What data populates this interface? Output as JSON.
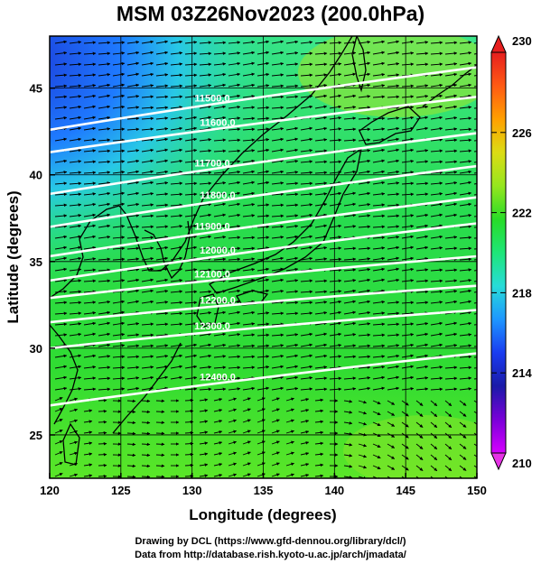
{
  "title": "MSM 03Z26Nov2023 (200.0hPa)",
  "x_axis": {
    "label": "Longitude (degrees)",
    "min": 120,
    "max": 150,
    "ticks": [
      120,
      125,
      130,
      135,
      140,
      145,
      150
    ]
  },
  "y_axis": {
    "label": "Latitude  (degrees)",
    "min": 22.5,
    "max": 48,
    "ticks": [
      25,
      30,
      35,
      40,
      45
    ]
  },
  "colorbar": {
    "min": 210,
    "max": 230,
    "labels": [
      210,
      214,
      218,
      222,
      226,
      230
    ],
    "colors": [
      "#d600ff",
      "#7a00d8",
      "#1a1aa8",
      "#1a3cf0",
      "#1e96ff",
      "#28dcd8",
      "#1ee678",
      "#28dc28",
      "#96e61e",
      "#dcdc14",
      "#ffa000",
      "#ff5a14",
      "#e61e1e"
    ]
  },
  "contours": [
    {
      "label": "11500.0",
      "lat120": 42.6,
      "lat150": 46.2
    },
    {
      "label": "11600.0",
      "lat120": 41.3,
      "lat150": 44.5
    },
    {
      "label": "11700.0",
      "lat120": 38.9,
      "lat150": 42.4
    },
    {
      "label": "11800.0",
      "lat120": 37.0,
      "lat150": 40.5
    },
    {
      "label": "11900.0",
      "lat120": 35.3,
      "lat150": 38.7
    },
    {
      "label": "12000.0",
      "lat120": 33.9,
      "lat150": 37.2
    },
    {
      "label": "12100.0",
      "lat120": 32.9,
      "lat150": 35.3
    },
    {
      "label": "12200.0",
      "lat120": 31.5,
      "lat150": 33.6
    },
    {
      "label": "12300.0",
      "lat120": 30.0,
      "lat150": 32.2
    },
    {
      "label": "12400.0",
      "lat120": 26.7,
      "lat150": 29.7
    }
  ],
  "credits": {
    "line1": "Drawing by DCL (https://www.gfd-dennou.org/library/dcl/)",
    "line2": "Data from http://database.rish.kyoto-u.ac.jp/arch/jmadata/"
  }
}
